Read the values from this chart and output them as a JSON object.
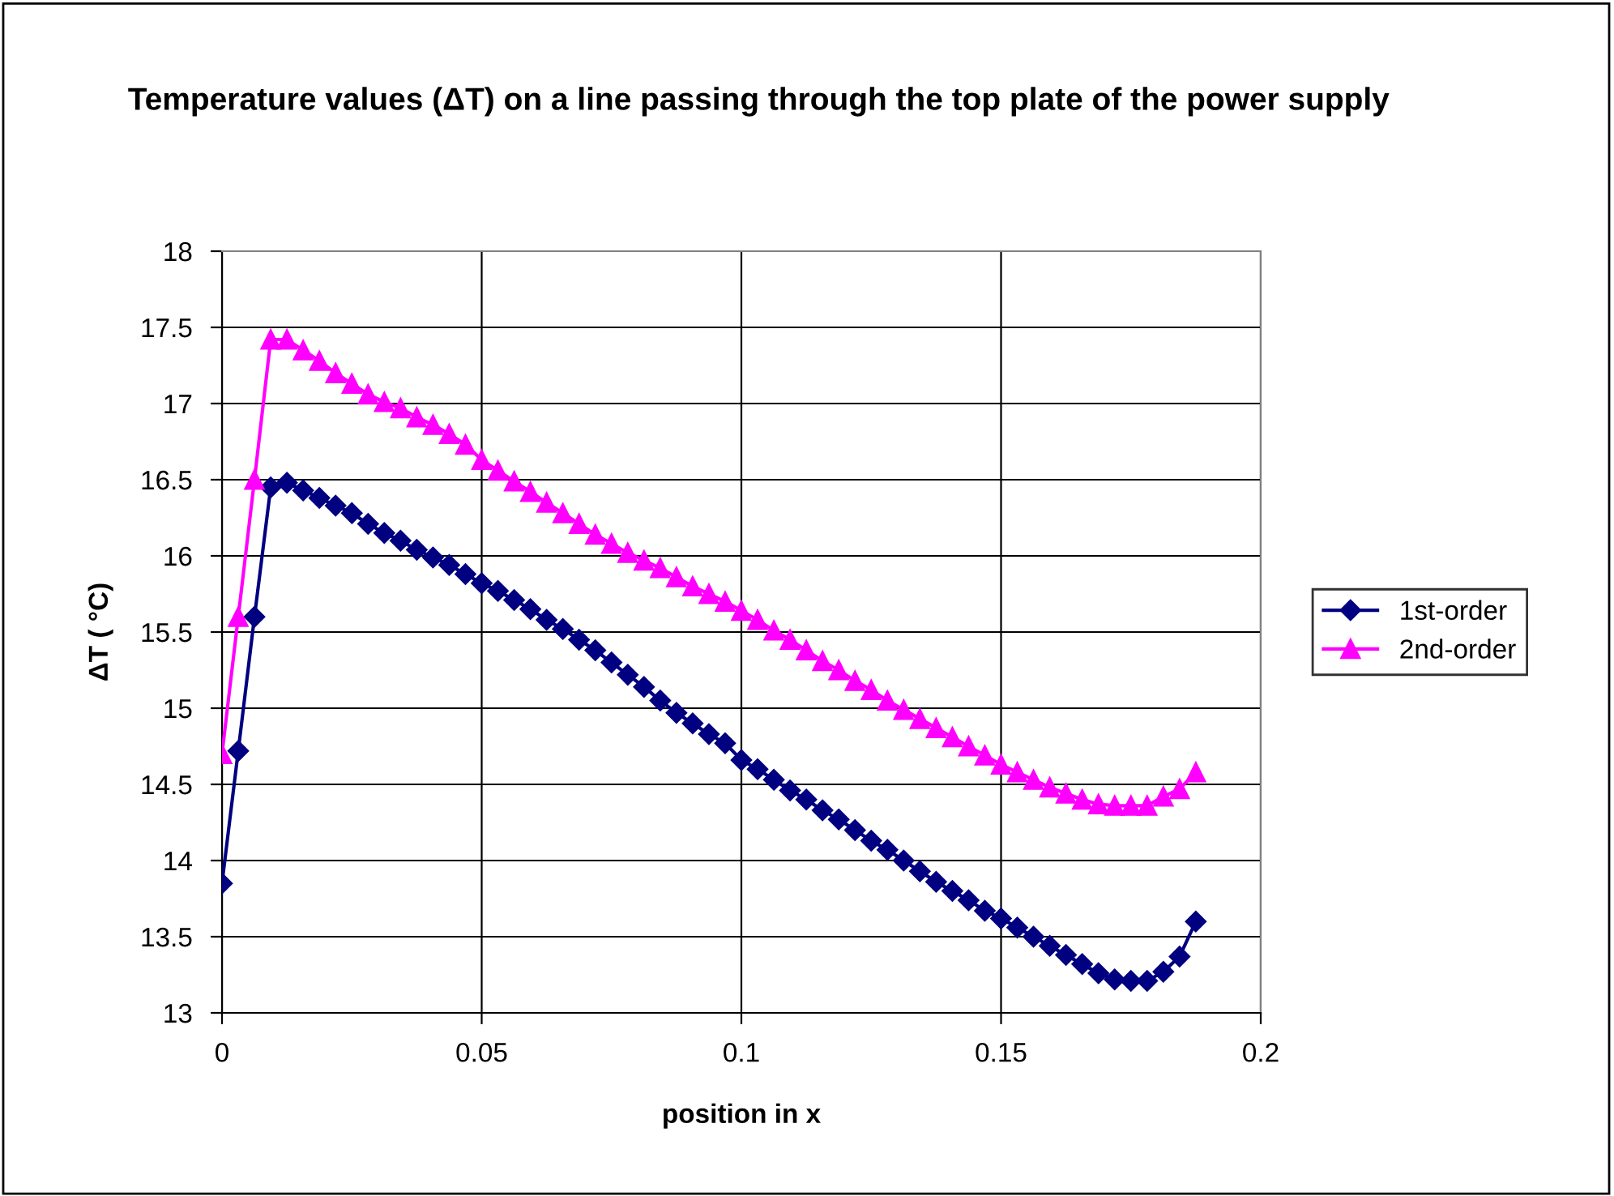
{
  "chart_data": {
    "type": "line",
    "title": "Temperature values (ΔT) on a line passing through the top plate of the power supply",
    "xlabel": "position in x",
    "ylabel": "ΔT ( °C)",
    "x": [
      0,
      0.003125,
      0.00625,
      0.009375,
      0.0125,
      0.015625,
      0.01875,
      0.021875,
      0.025,
      0.028125,
      0.03125,
      0.034375,
      0.0375,
      0.040625,
      0.04375,
      0.046875,
      0.05,
      0.053125,
      0.05625,
      0.059375,
      0.0625,
      0.065625,
      0.06875,
      0.071875,
      0.075,
      0.078125,
      0.08125,
      0.084375,
      0.0875,
      0.090625,
      0.09375,
      0.096875,
      0.1,
      0.103125,
      0.10625,
      0.109375,
      0.1125,
      0.115625,
      0.11875,
      0.121875,
      0.125,
      0.128125,
      0.13125,
      0.134375,
      0.1375,
      0.140625,
      0.14375,
      0.146875,
      0.15,
      0.153125,
      0.15625,
      0.159375,
      0.1625,
      0.165625,
      0.16875,
      0.171875,
      0.175,
      0.178125,
      0.18125,
      0.184375,
      0.1875
    ],
    "series": [
      {
        "name": "1st-order",
        "color": "#000080",
        "marker": "diamond",
        "values": [
          13.85,
          14.72,
          15.6,
          16.45,
          16.48,
          16.43,
          16.38,
          16.33,
          16.28,
          16.21,
          16.15,
          16.1,
          16.04,
          15.99,
          15.94,
          15.88,
          15.82,
          15.77,
          15.71,
          15.65,
          15.58,
          15.52,
          15.45,
          15.38,
          15.3,
          15.22,
          15.14,
          15.05,
          14.97,
          14.9,
          14.83,
          14.77,
          14.66,
          14.6,
          14.53,
          14.46,
          14.4,
          14.33,
          14.27,
          14.2,
          14.13,
          14.07,
          14.0,
          13.93,
          13.86,
          13.8,
          13.74,
          13.67,
          13.62,
          13.56,
          13.5,
          13.44,
          13.38,
          13.32,
          13.26,
          13.22,
          13.21,
          13.21,
          13.27,
          13.37,
          13.6
        ]
      },
      {
        "name": "2nd-order",
        "color": "#ff00ff",
        "marker": "triangle",
        "values": [
          14.7,
          15.6,
          16.5,
          17.42,
          17.42,
          17.35,
          17.28,
          17.2,
          17.13,
          17.06,
          17.01,
          16.97,
          16.91,
          16.86,
          16.8,
          16.73,
          16.63,
          16.56,
          16.49,
          16.42,
          16.35,
          16.28,
          16.21,
          16.14,
          16.08,
          16.02,
          15.97,
          15.92,
          15.86,
          15.8,
          15.75,
          15.7,
          15.64,
          15.58,
          15.51,
          15.45,
          15.38,
          15.31,
          15.25,
          15.18,
          15.12,
          15.05,
          14.99,
          14.93,
          14.87,
          14.81,
          14.75,
          14.69,
          14.63,
          14.58,
          14.53,
          14.48,
          14.44,
          14.4,
          14.37,
          14.36,
          14.36,
          14.36,
          14.42,
          14.47,
          14.58
        ]
      }
    ],
    "xlim": [
      0,
      0.2
    ],
    "xticks": [
      0,
      0.05,
      0.1,
      0.15,
      0.2
    ],
    "ylim": [
      13,
      18
    ],
    "yticks": [
      13,
      13.5,
      14,
      14.5,
      15,
      15.5,
      16,
      16.5,
      17,
      17.5,
      18
    ],
    "grid": true,
    "legend": "right",
    "line_style": "solid"
  }
}
